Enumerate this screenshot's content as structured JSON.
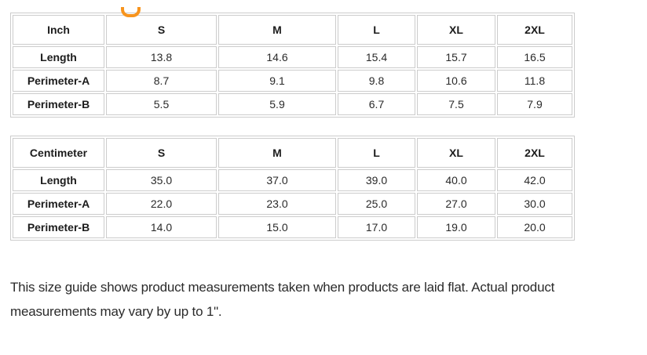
{
  "page": {
    "accent_color": "#f7941d",
    "border_color": "#cccccc",
    "background": "#ffffff"
  },
  "size_guide": {
    "tables": [
      {
        "unit": "Inch",
        "sizes": [
          "S",
          "M",
          "L",
          "XL",
          "2XL"
        ],
        "rows": [
          {
            "label": "Length",
            "values": [
              "13.8",
              "14.6",
              "15.4",
              "15.7",
              "16.5"
            ]
          },
          {
            "label": "Perimeter-A",
            "values": [
              "8.7",
              "9.1",
              "9.8",
              "10.6",
              "11.8"
            ]
          },
          {
            "label": "Perimeter-B",
            "values": [
              "5.5",
              "5.9",
              "6.7",
              "7.5",
              "7.9"
            ]
          }
        ]
      },
      {
        "unit": "Centimeter",
        "sizes": [
          "S",
          "M",
          "L",
          "XL",
          "2XL"
        ],
        "rows": [
          {
            "label": "Length",
            "values": [
              "35.0",
              "37.0",
              "39.0",
              "40.0",
              "42.0"
            ]
          },
          {
            "label": "Perimeter-A",
            "values": [
              "22.0",
              "23.0",
              "25.0",
              "27.0",
              "30.0"
            ]
          },
          {
            "label": "Perimeter-B",
            "values": [
              "14.0",
              "15.0",
              "17.0",
              "19.0",
              "20.0"
            ]
          }
        ]
      }
    ],
    "note": "This size guide shows product measurements taken when products are laid flat. Actual product measurements may vary by up to 1\"."
  }
}
